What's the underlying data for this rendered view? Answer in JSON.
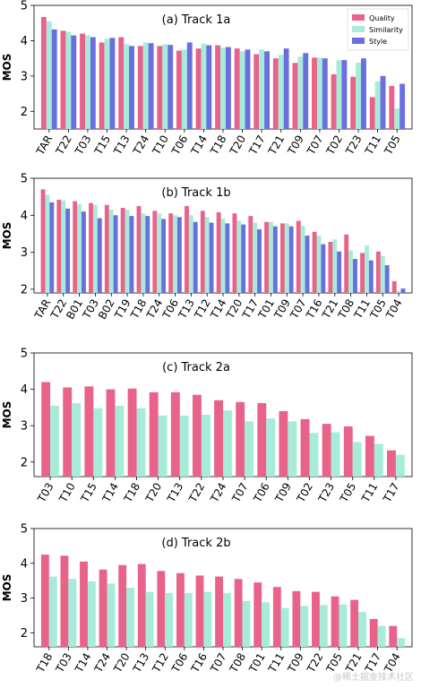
{
  "watermark": "@稀土掘金技术社区",
  "colors": {
    "quality": "#e8628a",
    "similarity": "#a6ecd8",
    "style": "#6a6fe0"
  },
  "chart_data": [
    {
      "type": "bar",
      "title": "(a) Track 1a",
      "ylabel": "MOS",
      "ylim": [
        1.5,
        5.0
      ],
      "yticks": [
        2,
        3,
        4,
        5
      ],
      "legend": {
        "position": "top-right",
        "entries": [
          "Quality",
          "Similarity",
          "Style"
        ]
      },
      "categories": [
        "TAR",
        "T22",
        "T03",
        "T15",
        "T13",
        "T24",
        "T10",
        "T06",
        "T14",
        "T18",
        "T20",
        "T17",
        "T21",
        "T09",
        "T07",
        "T02",
        "T23",
        "T11",
        "T05"
      ],
      "series": [
        {
          "name": "Quality",
          "values": [
            4.67,
            4.28,
            4.2,
            3.95,
            4.1,
            3.85,
            3.85,
            3.72,
            3.78,
            3.87,
            3.78,
            3.62,
            3.5,
            3.37,
            3.52,
            3.05,
            2.98,
            2.4,
            2.72
          ]
        },
        {
          "name": "Similarity",
          "values": [
            4.55,
            4.25,
            4.15,
            4.05,
            3.9,
            3.95,
            3.9,
            3.75,
            3.92,
            3.8,
            3.7,
            3.75,
            3.6,
            3.55,
            3.52,
            3.45,
            3.38,
            2.85,
            2.08
          ]
        },
        {
          "name": "Style",
          "values": [
            4.32,
            4.15,
            4.1,
            4.08,
            3.85,
            3.93,
            3.88,
            3.95,
            3.87,
            3.82,
            3.75,
            3.7,
            3.78,
            3.65,
            3.5,
            3.45,
            3.5,
            3.0,
            2.78
          ]
        }
      ]
    },
    {
      "type": "bar",
      "title": "(b) Track 1b",
      "ylabel": "MOS",
      "ylim": [
        1.9,
        5.0
      ],
      "yticks": [
        2,
        3,
        4,
        5
      ],
      "categories": [
        "TAR",
        "T22",
        "B01",
        "T03",
        "B02",
        "T19",
        "T18",
        "T24",
        "T06",
        "T13",
        "T12",
        "T14",
        "T20",
        "T17",
        "T01",
        "T09",
        "T07",
        "T16",
        "T21",
        "T08",
        "T11",
        "T05",
        "T04"
      ],
      "series": [
        {
          "name": "Quality",
          "values": [
            4.7,
            4.42,
            4.38,
            4.33,
            4.28,
            4.2,
            4.25,
            4.12,
            4.05,
            4.25,
            4.12,
            4.08,
            4.05,
            3.98,
            3.82,
            3.78,
            3.85,
            3.55,
            3.28,
            3.48,
            2.98,
            3.02,
            2.22
          ]
        },
        {
          "name": "Similarity",
          "values": [
            4.55,
            4.4,
            4.3,
            4.28,
            4.15,
            4.15,
            4.05,
            4.05,
            4.0,
            4.0,
            3.95,
            3.9,
            3.85,
            3.8,
            3.82,
            3.78,
            3.72,
            3.45,
            3.35,
            3.05,
            3.18,
            2.9,
            1.95
          ]
        },
        {
          "name": "Style",
          "values": [
            4.35,
            4.18,
            4.1,
            3.92,
            4.0,
            3.98,
            3.98,
            3.9,
            3.95,
            3.82,
            3.8,
            3.78,
            3.75,
            3.62,
            3.7,
            3.7,
            3.45,
            3.22,
            3.02,
            2.82,
            2.78,
            2.65,
            2.02
          ]
        }
      ]
    },
    {
      "type": "bar",
      "title": "(c) Track 2a",
      "ylabel": "MOS",
      "ylim": [
        1.6,
        5.0
      ],
      "yticks": [
        2,
        3,
        4,
        5
      ],
      "categories": [
        "T03",
        "T10",
        "T15",
        "T14",
        "T18",
        "T20",
        "T13",
        "T22",
        "T24",
        "T07",
        "T06",
        "T09",
        "T02",
        "T23",
        "T05",
        "T11",
        "T17"
      ],
      "series": [
        {
          "name": "Quality",
          "values": [
            4.2,
            4.05,
            4.08,
            4.0,
            4.02,
            3.92,
            3.92,
            3.85,
            3.7,
            3.65,
            3.62,
            3.4,
            3.18,
            3.05,
            2.98,
            2.72,
            2.32
          ]
        },
        {
          "name": "Similarity",
          "values": [
            3.55,
            3.62,
            3.48,
            3.55,
            3.48,
            3.28,
            3.28,
            3.3,
            3.42,
            3.12,
            3.2,
            3.12,
            2.8,
            2.82,
            2.55,
            2.5,
            2.2
          ]
        }
      ]
    },
    {
      "type": "bar",
      "title": "(d) Track 2b",
      "ylabel": "MOS",
      "ylim": [
        1.6,
        5.0
      ],
      "yticks": [
        2,
        3,
        4,
        5
      ],
      "categories": [
        "T18",
        "T03",
        "T14",
        "T24",
        "T20",
        "T13",
        "T12",
        "T06",
        "T16",
        "T07",
        "T08",
        "T01",
        "T11",
        "T09",
        "T22",
        "T05",
        "T21",
        "T17",
        "T04"
      ],
      "series": [
        {
          "name": "Quality",
          "values": [
            4.25,
            4.22,
            4.05,
            3.82,
            3.95,
            3.98,
            3.78,
            3.72,
            3.65,
            3.62,
            3.55,
            3.45,
            3.32,
            3.2,
            3.18,
            3.05,
            2.95,
            2.4,
            2.2
          ]
        },
        {
          "name": "Similarity",
          "values": [
            3.62,
            3.55,
            3.48,
            3.42,
            3.3,
            3.18,
            3.15,
            3.15,
            3.18,
            3.15,
            2.92,
            2.88,
            2.72,
            2.78,
            2.8,
            2.82,
            2.6,
            2.2,
            1.85
          ]
        }
      ]
    }
  ]
}
